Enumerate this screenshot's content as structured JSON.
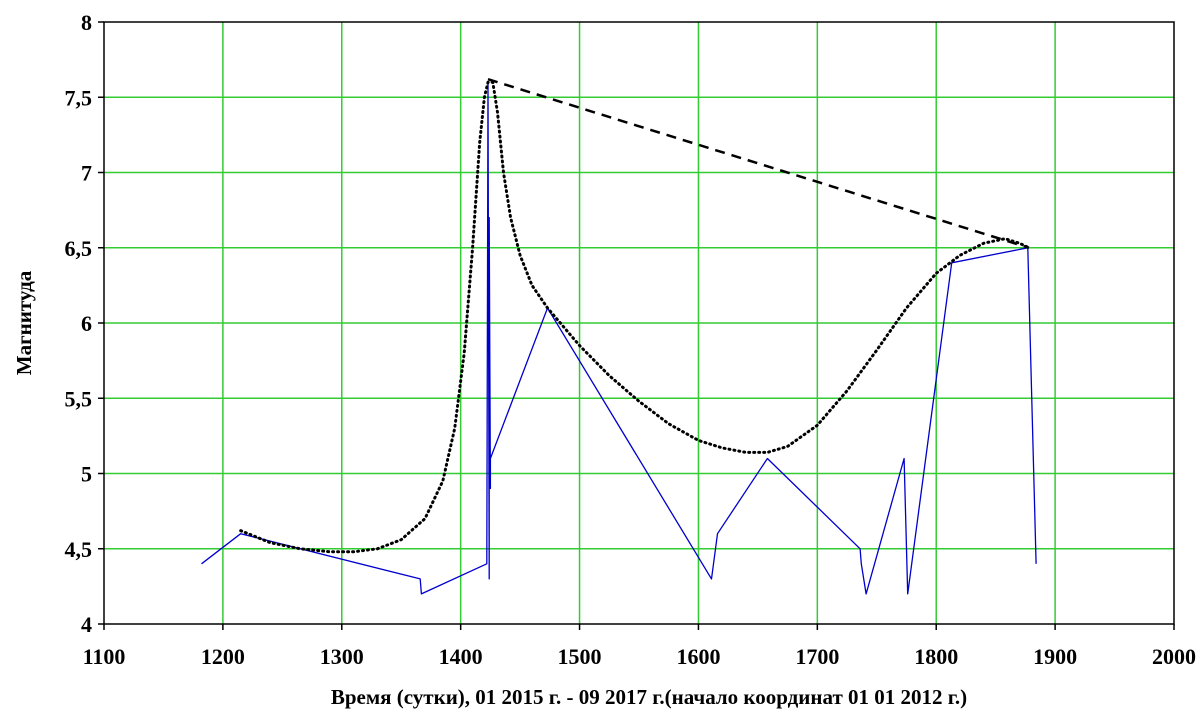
{
  "chart_data": {
    "type": "line",
    "title": "",
    "xlabel": "Время (сутки), 01 2015 г. - 09 2017 г.(начало координат 01 01 2012 г.)",
    "ylabel": "Магнитуда",
    "xlim": [
      1100,
      2000
    ],
    "ylim": [
      4,
      8
    ],
    "grid": true,
    "x_ticks": [
      "1100",
      "1200",
      "1300",
      "1400",
      "1500",
      "1600",
      "1700",
      "1800",
      "1900",
      "2000"
    ],
    "y_ticks": [
      "4",
      "4,5",
      "5",
      "5,5",
      "6",
      "6,5",
      "7",
      "7,5",
      "8"
    ],
    "colors": {
      "grid": "#33cc33",
      "observed": "#0000cc",
      "trend": "#000000",
      "envelope": "#000000"
    },
    "series": [
      {
        "style": "solid",
        "points": [
          [
            1182,
            4.4
          ],
          [
            1215,
            4.6
          ],
          [
            1366,
            4.3
          ],
          [
            1367,
            4.2
          ],
          [
            1422,
            4.4
          ],
          [
            1423,
            7.6
          ],
          [
            1424,
            4.3
          ],
          [
            1424,
            6.7
          ],
          [
            1425,
            4.9
          ],
          [
            1425,
            5.1
          ],
          [
            1473,
            6.1
          ],
          [
            1611,
            4.3
          ],
          [
            1616,
            4.6
          ],
          [
            1658,
            5.1
          ],
          [
            1736,
            4.5
          ],
          [
            1737,
            4.4
          ],
          [
            1741,
            4.2
          ],
          [
            1773,
            5.1
          ],
          [
            1776,
            4.2
          ],
          [
            1813,
            6.4
          ],
          [
            1877,
            6.5
          ],
          [
            1884,
            4.4
          ]
        ]
      },
      {
        "style": "dotted",
        "points": [
          [
            1215,
            4.62
          ],
          [
            1240,
            4.54
          ],
          [
            1265,
            4.5
          ],
          [
            1290,
            4.48
          ],
          [
            1310,
            4.48
          ],
          [
            1330,
            4.5
          ],
          [
            1350,
            4.56
          ],
          [
            1370,
            4.7
          ],
          [
            1385,
            4.95
          ],
          [
            1395,
            5.3
          ],
          [
            1403,
            5.8
          ],
          [
            1410,
            6.5
          ],
          [
            1416,
            7.2
          ],
          [
            1420,
            7.5
          ],
          [
            1423,
            7.6
          ],
          [
            1427,
            7.6
          ],
          [
            1431,
            7.4
          ],
          [
            1436,
            7.0
          ],
          [
            1442,
            6.7
          ],
          [
            1450,
            6.45
          ],
          [
            1460,
            6.25
          ],
          [
            1473,
            6.1
          ],
          [
            1500,
            5.85
          ],
          [
            1525,
            5.65
          ],
          [
            1550,
            5.48
          ],
          [
            1575,
            5.33
          ],
          [
            1600,
            5.22
          ],
          [
            1620,
            5.17
          ],
          [
            1640,
            5.14
          ],
          [
            1658,
            5.14
          ],
          [
            1675,
            5.18
          ],
          [
            1700,
            5.32
          ],
          [
            1725,
            5.55
          ],
          [
            1750,
            5.82
          ],
          [
            1775,
            6.1
          ],
          [
            1800,
            6.33
          ],
          [
            1820,
            6.45
          ],
          [
            1840,
            6.53
          ],
          [
            1858,
            6.56
          ],
          [
            1870,
            6.53
          ],
          [
            1878,
            6.5
          ]
        ]
      },
      {
        "style": "dashed",
        "points": [
          [
            1423,
            7.62
          ],
          [
            1878,
            6.5
          ]
        ]
      }
    ]
  }
}
